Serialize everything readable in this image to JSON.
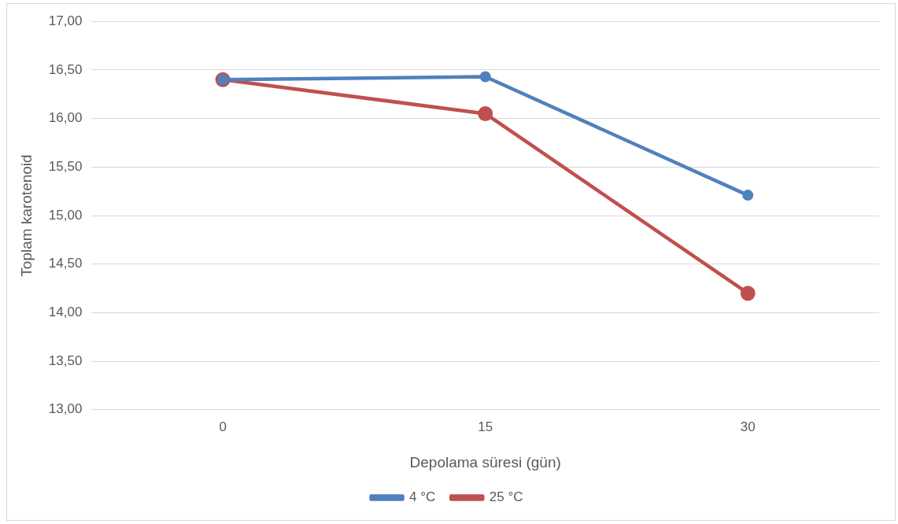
{
  "chart_data": {
    "type": "line",
    "xlabel": "Depolama süresi (gün)",
    "ylabel": "Toplam karotenoid",
    "categories": [
      "0",
      "15",
      "30"
    ],
    "series": [
      {
        "name": "4 °C",
        "color": "#4f81bd",
        "values": [
          16.4,
          16.43,
          15.21
        ]
      },
      {
        "name": "25 °C",
        "color": "#c0504d",
        "values": [
          16.4,
          16.05,
          14.2
        ]
      }
    ],
    "ylim": [
      13,
      17
    ],
    "yticks": [
      {
        "value": 13,
        "label": "13,00"
      },
      {
        "value": 13.5,
        "label": "13,50"
      },
      {
        "value": 14,
        "label": "14,00"
      },
      {
        "value": 14.5,
        "label": "14,50"
      },
      {
        "value": 15,
        "label": "15,00"
      },
      {
        "value": 15.5,
        "label": "15,50"
      },
      {
        "value": 16,
        "label": "16,00"
      },
      {
        "value": 16.5,
        "label": "16,50"
      },
      {
        "value": 17,
        "label": "17,00"
      }
    ],
    "grid": "y",
    "legend": "bottom",
    "marker": "circle",
    "line_style": "solid"
  }
}
